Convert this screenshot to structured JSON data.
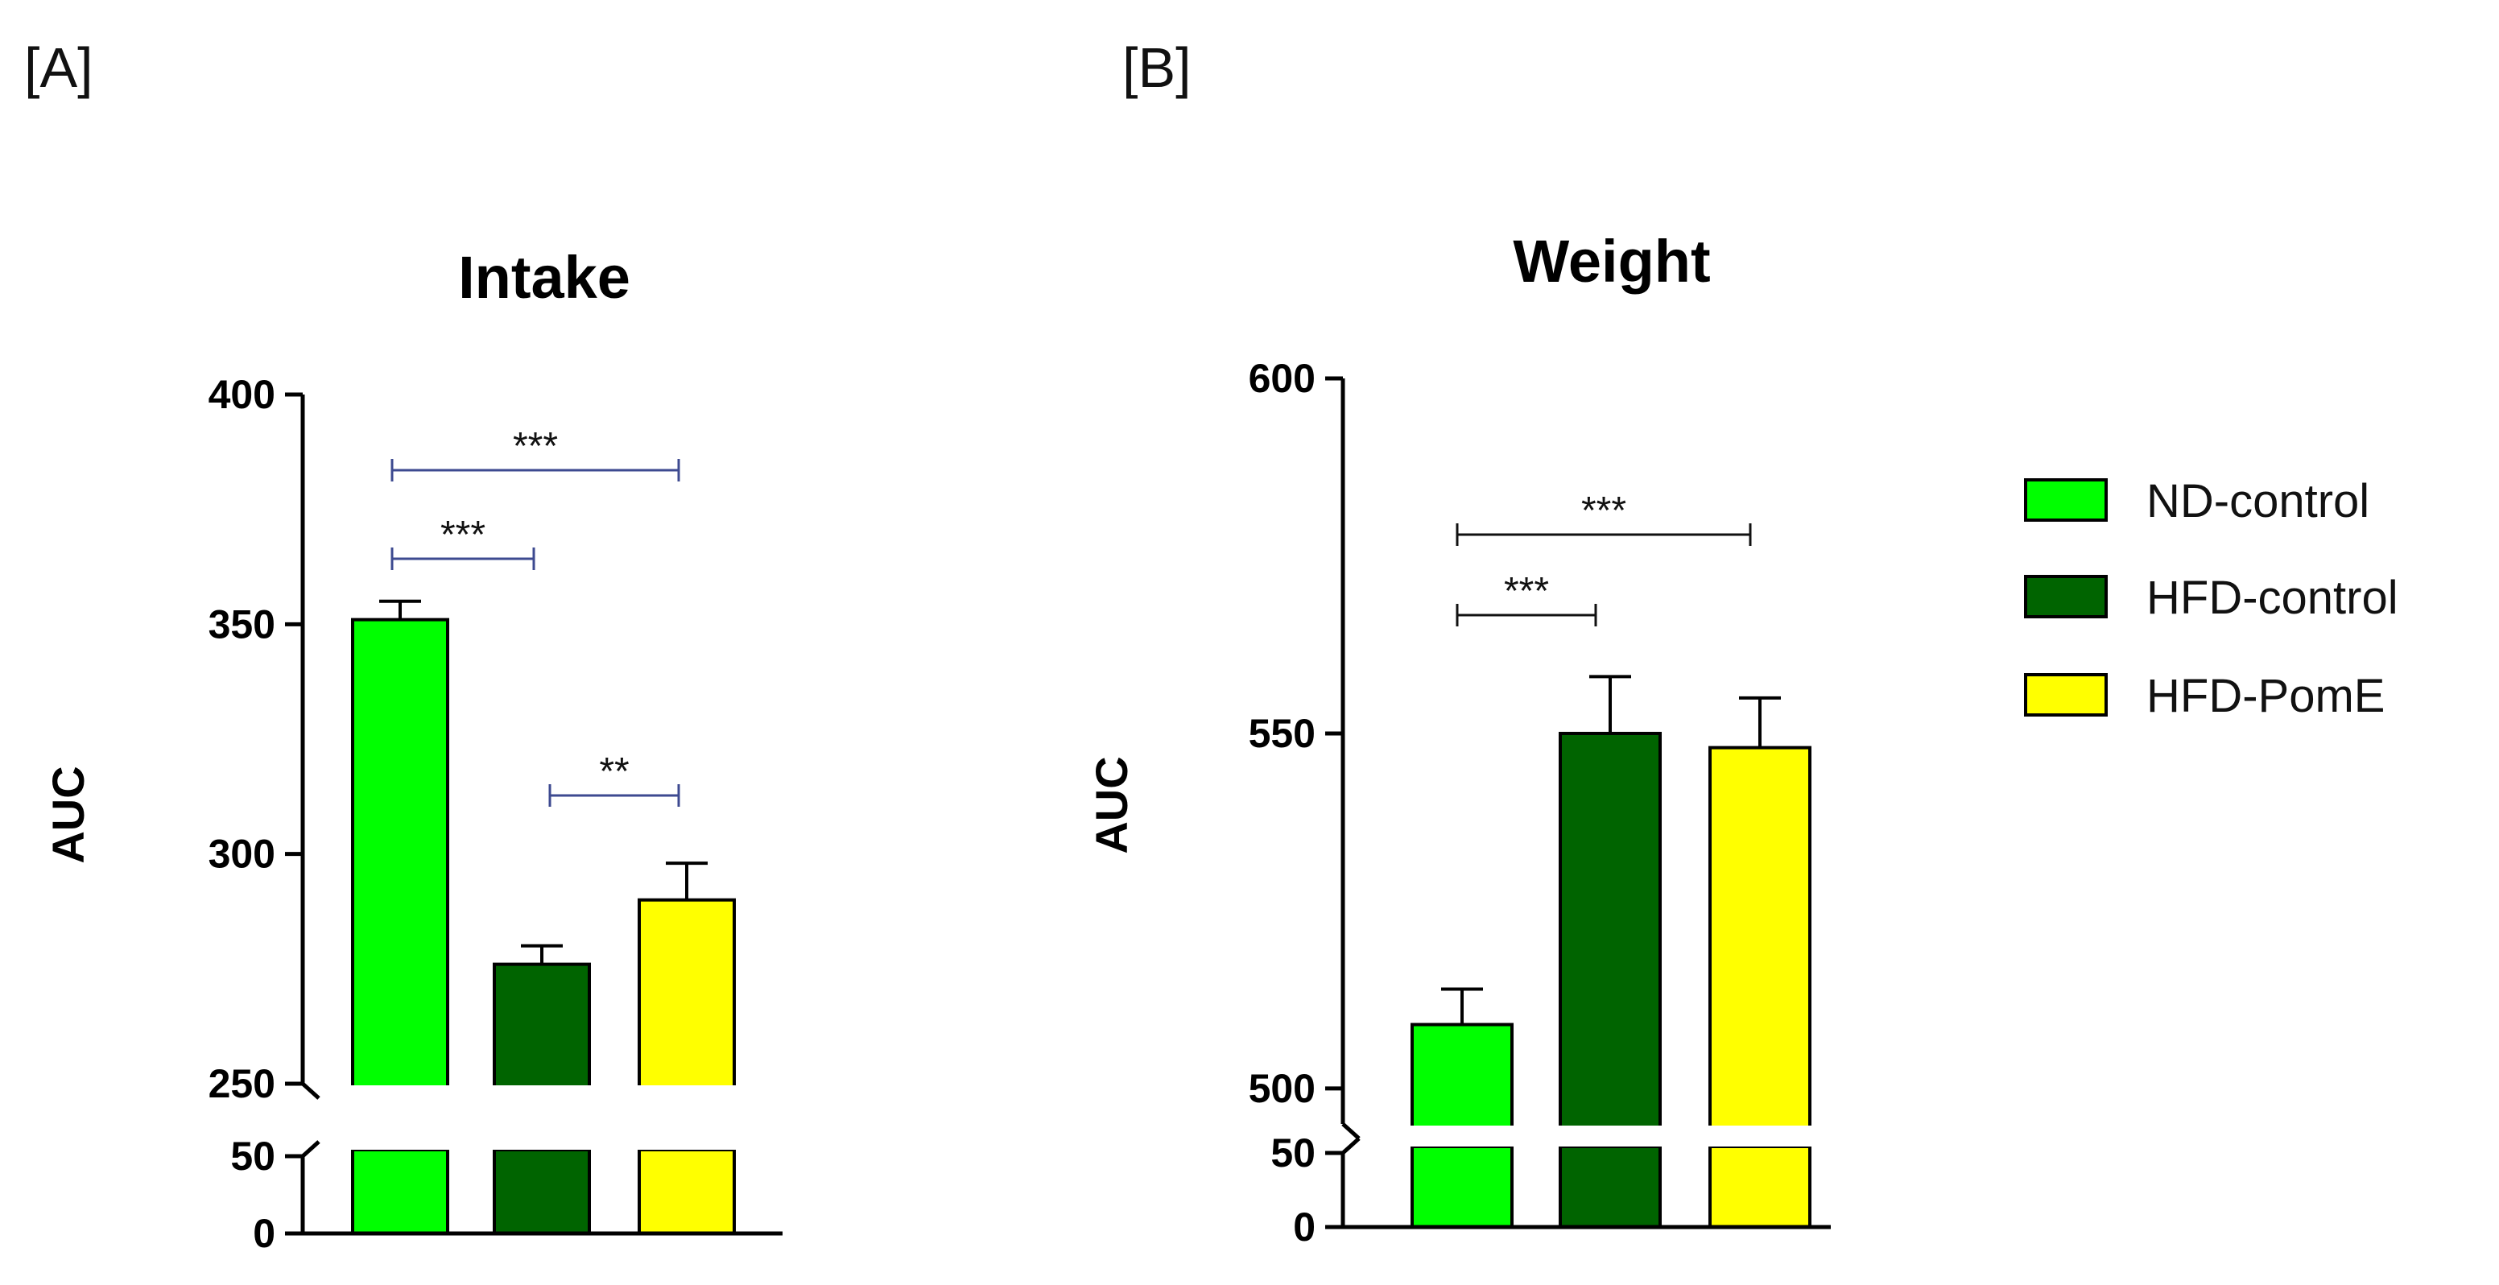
{
  "colors": {
    "ND-control": "#00ff00",
    "HFD-control": "#006400",
    "HFD-PomE": "#ffff00",
    "axis": "#000000",
    "bracket_a": "#3d4a90",
    "bracket_b": "#111111"
  },
  "legend": [
    "ND-control",
    "HFD-control",
    "HFD-PomE"
  ],
  "chart_data": [
    {
      "panel": "[A]",
      "type": "bar",
      "title": "Intake",
      "ylabel": "AUC",
      "xlabel": "",
      "categories": [
        "ND-control",
        "HFD-control",
        "HFD-PomE"
      ],
      "values": [
        351,
        276,
        290
      ],
      "errors": [
        4,
        4,
        8
      ],
      "y_break": true,
      "ylim_lower": [
        0,
        50
      ],
      "ylim_upper": [
        250,
        400
      ],
      "yticks_lower": [
        "0",
        "50"
      ],
      "yticks_upper": [
        "250",
        "300",
        "350",
        "400"
      ],
      "significance": [
        {
          "from": "ND-control",
          "to": "HFD-PomE",
          "label": "***"
        },
        {
          "from": "ND-control",
          "to": "HFD-control",
          "label": "***"
        },
        {
          "from": "HFD-control",
          "to": "HFD-PomE",
          "label": "**"
        }
      ]
    },
    {
      "panel": "[B]",
      "type": "bar",
      "title": "Weight",
      "ylabel": "AUC",
      "xlabel": "",
      "categories": [
        "ND-control",
        "HFD-control",
        "HFD-PomE"
      ],
      "values": [
        509,
        550,
        548
      ],
      "errors": [
        5,
        8,
        7
      ],
      "y_break": true,
      "ylim_lower": [
        0,
        50
      ],
      "ylim_upper": [
        495,
        600
      ],
      "yticks_lower": [
        "0",
        "50"
      ],
      "yticks_upper": [
        "500",
        "550",
        "600"
      ],
      "significance": [
        {
          "from": "ND-control",
          "to": "HFD-PomE",
          "label": "***"
        },
        {
          "from": "ND-control",
          "to": "HFD-control",
          "label": "***"
        }
      ]
    }
  ]
}
